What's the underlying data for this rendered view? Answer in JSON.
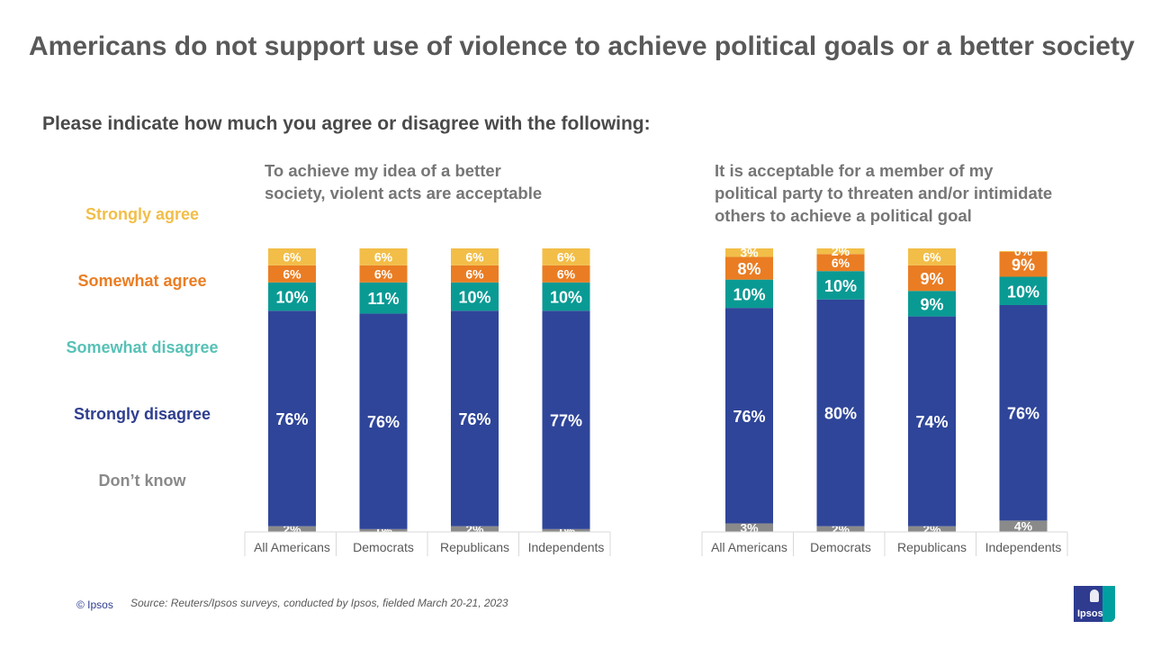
{
  "title": "Americans do not support use of violence to achieve political goals or a better society",
  "question": "Please indicate how much you agree or disagree with the following:",
  "legend": [
    {
      "label": "Strongly agree",
      "color": "#f2be48"
    },
    {
      "label": "Somewhat agree",
      "color": "#ea7d23"
    },
    {
      "label": "Somewhat disagree",
      "color": "#57c1b7"
    },
    {
      "label": "Strongly disagree",
      "color": "#2f3f8f"
    },
    {
      "label": "Don’t know",
      "color": "#8a8a8a"
    }
  ],
  "footer": {
    "copyright": "© Ipsos",
    "source": "Source: Reuters/Ipsos surveys, conducted by Ipsos, fielded March 20-21, 2023",
    "logo_text": "Ipsos"
  },
  "chart_data": [
    {
      "type": "bar",
      "stacked": true,
      "title": "To achieve my idea of a better society, violent acts are acceptable",
      "title_lines": [
        "To achieve my idea of a better",
        "society, violent acts are acceptable"
      ],
      "categories": [
        "All Americans",
        "Democrats",
        "Republicans",
        "Independents"
      ],
      "series": [
        {
          "name": "Don’t know",
          "color": "#8a8a8a",
          "values": [
            2,
            1,
            2,
            1
          ],
          "labels": [
            "2%",
            "1%",
            "2%",
            "1%"
          ]
        },
        {
          "name": "Strongly disagree",
          "color": "#2f4599",
          "values": [
            76,
            76,
            76,
            77
          ],
          "labels": [
            "76%",
            "76%",
            "76%",
            "77%"
          ]
        },
        {
          "name": "Somewhat disagree",
          "color": "#0a9a94",
          "values": [
            10,
            11,
            10,
            10
          ],
          "labels": [
            "10%",
            "11%",
            "10%",
            "10%"
          ]
        },
        {
          "name": "Somewhat agree",
          "color": "#ea7d23",
          "values": [
            6,
            6,
            6,
            6
          ],
          "labels": [
            "6%",
            "6%",
            "6%",
            "6%"
          ]
        },
        {
          "name": "Strongly agree",
          "color": "#f2be48",
          "values": [
            6,
            6,
            6,
            6
          ],
          "labels": [
            "6%",
            "6%",
            "6%",
            "6%"
          ]
        }
      ],
      "ylim": [
        0,
        100
      ]
    },
    {
      "type": "bar",
      "stacked": true,
      "title": "It is acceptable for a member of my political party to threaten and/or intimidate others to achieve a political goal",
      "title_lines": [
        "It is acceptable for a member of my",
        "political party to threaten and/or intimidate",
        "others to achieve a political goal"
      ],
      "categories": [
        "All Americans",
        "Democrats",
        "Republicans",
        "Independents"
      ],
      "series": [
        {
          "name": "Don’t know",
          "color": "#8a8a8a",
          "values": [
            3,
            2,
            2,
            4
          ],
          "labels": [
            "3%",
            "2%",
            "2%",
            "4%"
          ]
        },
        {
          "name": "Strongly disagree",
          "color": "#2f4599",
          "values": [
            76,
            80,
            74,
            76
          ],
          "labels": [
            "76%",
            "80%",
            "74%",
            "76%"
          ]
        },
        {
          "name": "Somewhat disagree",
          "color": "#0a9a94",
          "values": [
            10,
            10,
            9,
            10
          ],
          "labels": [
            "10%",
            "10%",
            "9%",
            "10%"
          ]
        },
        {
          "name": "Somewhat agree",
          "color": "#ea7d23",
          "values": [
            8,
            6,
            9,
            9
          ],
          "labels": [
            "8%",
            "6%",
            "9%",
            "9%"
          ]
        },
        {
          "name": "Strongly agree",
          "color": "#f2be48",
          "values": [
            3,
            2,
            6,
            0
          ],
          "labels": [
            "3%",
            "2%",
            "6%",
            "0%"
          ]
        }
      ],
      "ylim": [
        0,
        100
      ]
    }
  ]
}
